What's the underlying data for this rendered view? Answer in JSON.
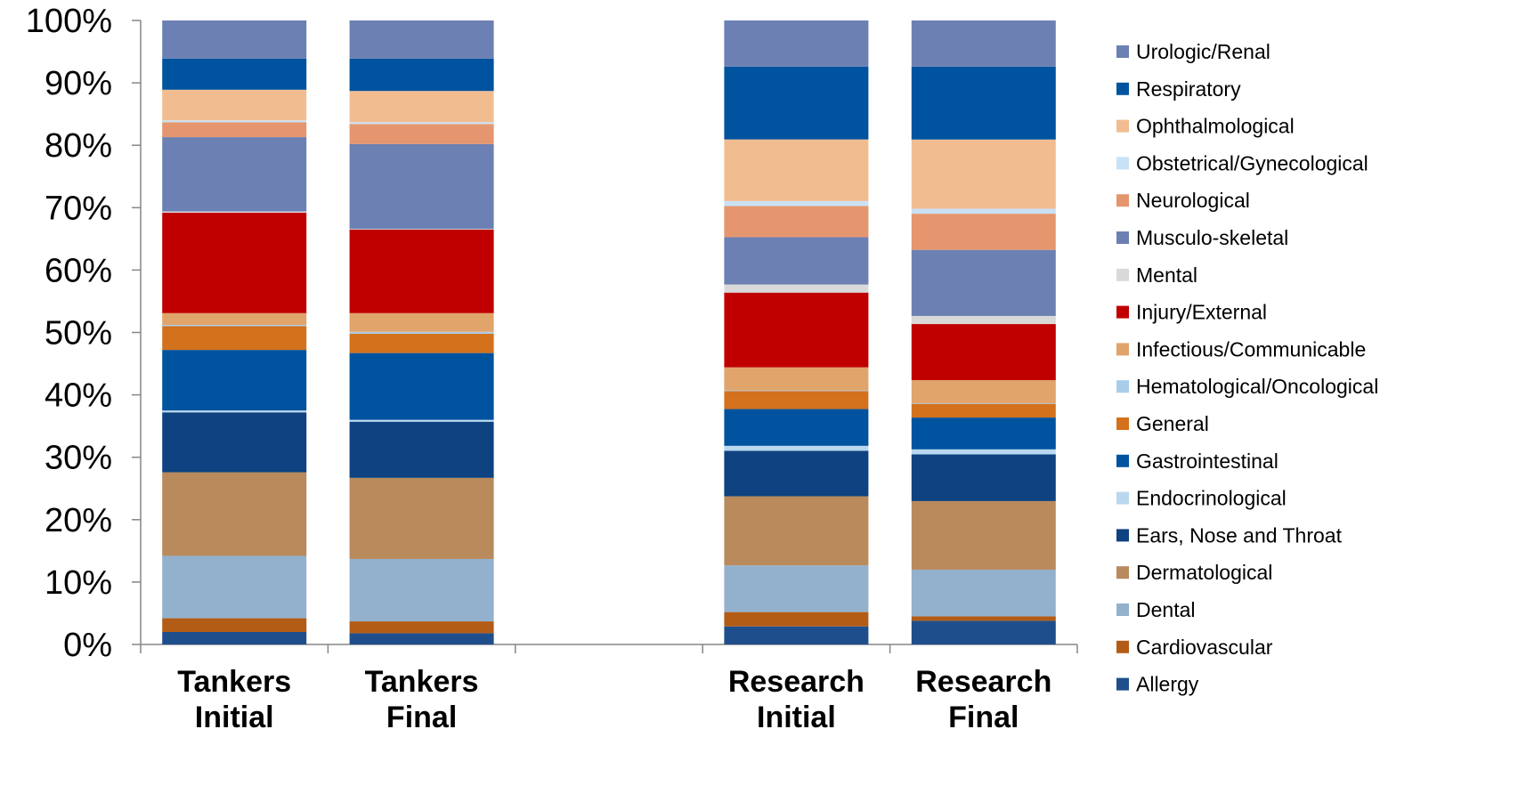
{
  "chart_data": {
    "type": "bar",
    "stacked": true,
    "percent_stacked": true,
    "ylim": [
      0,
      100
    ],
    "yticks": [
      "0%",
      "10%",
      "20%",
      "30%",
      "40%",
      "50%",
      "60%",
      "70%",
      "80%",
      "90%",
      "100%"
    ],
    "groups": [
      {
        "lines": [
          "Tankers",
          "Initial"
        ]
      },
      {
        "lines": [
          "Tankers",
          "Final"
        ]
      },
      {
        "lines": [],
        "empty": true
      },
      {
        "lines": [
          "Research",
          "Initial"
        ]
      },
      {
        "lines": [
          "Research",
          "Final"
        ]
      }
    ],
    "legend_position": "right",
    "grid": false,
    "series": [
      {
        "name": "Allergy",
        "color": "#1F4E8C",
        "values": [
          2.0,
          1.8,
          null,
          2.9,
          3.8
        ]
      },
      {
        "name": "Cardiovascular",
        "color": "#B35C16",
        "values": [
          2.2,
          1.9,
          null,
          2.3,
          0.7
        ]
      },
      {
        "name": "Dental",
        "color": "#93B1CD",
        "values": [
          10.0,
          10.0,
          null,
          7.5,
          7.5
        ]
      },
      {
        "name": "Dermatological",
        "color": "#B98A5C",
        "values": [
          13.4,
          13.0,
          null,
          11.1,
          11.0
        ]
      },
      {
        "name": "Ears, Nose and Throat",
        "color": "#0E4280",
        "values": [
          9.6,
          9.0,
          null,
          7.3,
          7.5
        ]
      },
      {
        "name": "Endocrinological",
        "color": "#B9D8EF",
        "values": [
          0.3,
          0.3,
          null,
          0.8,
          0.8
        ]
      },
      {
        "name": "Gastrointestinal",
        "color": "#00539F",
        "values": [
          9.7,
          10.7,
          null,
          5.9,
          5.1
        ]
      },
      {
        "name": "General",
        "color": "#D3711D",
        "values": [
          3.8,
          3.1,
          null,
          2.9,
          2.2
        ]
      },
      {
        "name": "Hematological/Oncological",
        "color": "#A8CDEB",
        "values": [
          0.2,
          0.3,
          null,
          0.1,
          0.1
        ]
      },
      {
        "name": "Infectious/Communicable",
        "color": "#E1A46B",
        "values": [
          1.9,
          3.0,
          null,
          3.7,
          3.7
        ]
      },
      {
        "name": "Injury/External",
        "color": "#C00000",
        "values": [
          16.1,
          13.4,
          null,
          12.0,
          9.0
        ]
      },
      {
        "name": "Mental",
        "color": "#D9D9D9",
        "values": [
          0.2,
          0.1,
          null,
          1.3,
          1.3
        ]
      },
      {
        "name": "Musculo-skeletal",
        "color": "#6C80B3",
        "values": [
          11.9,
          13.6,
          null,
          7.6,
          10.6
        ]
      },
      {
        "name": "Neurological",
        "color": "#E5966E",
        "values": [
          2.4,
          3.2,
          null,
          5.0,
          5.8
        ]
      },
      {
        "name": "Obstetrical/Gynecological",
        "color": "#C9E1F6",
        "values": [
          0.3,
          0.3,
          null,
          0.8,
          0.8
        ]
      },
      {
        "name": "Ophthalmological",
        "color": "#F1BD90",
        "values": [
          4.9,
          5.0,
          null,
          9.9,
          11.1
        ]
      },
      {
        "name": "Respiratory",
        "color": "#00539F",
        "values": [
          5.0,
          5.2,
          null,
          11.7,
          11.7
        ]
      },
      {
        "name": "Urologic/Renal",
        "color": "#6C80B3",
        "values": [
          6.1,
          6.1,
          null,
          7.4,
          7.4
        ]
      }
    ]
  }
}
